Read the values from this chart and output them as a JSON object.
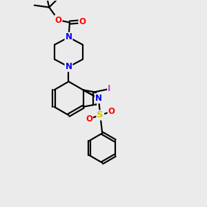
{
  "bg_color": "#ebebeb",
  "bond_color": "#000000",
  "bond_width": 1.6,
  "atom_colors": {
    "N": "#0000ee",
    "O": "#ff0000",
    "S": "#cccc00",
    "I": "#bb44bb",
    "C": "#000000"
  },
  "font_size": 8.5,
  "fig_size": [
    3.0,
    3.0
  ],
  "dpi": 100
}
